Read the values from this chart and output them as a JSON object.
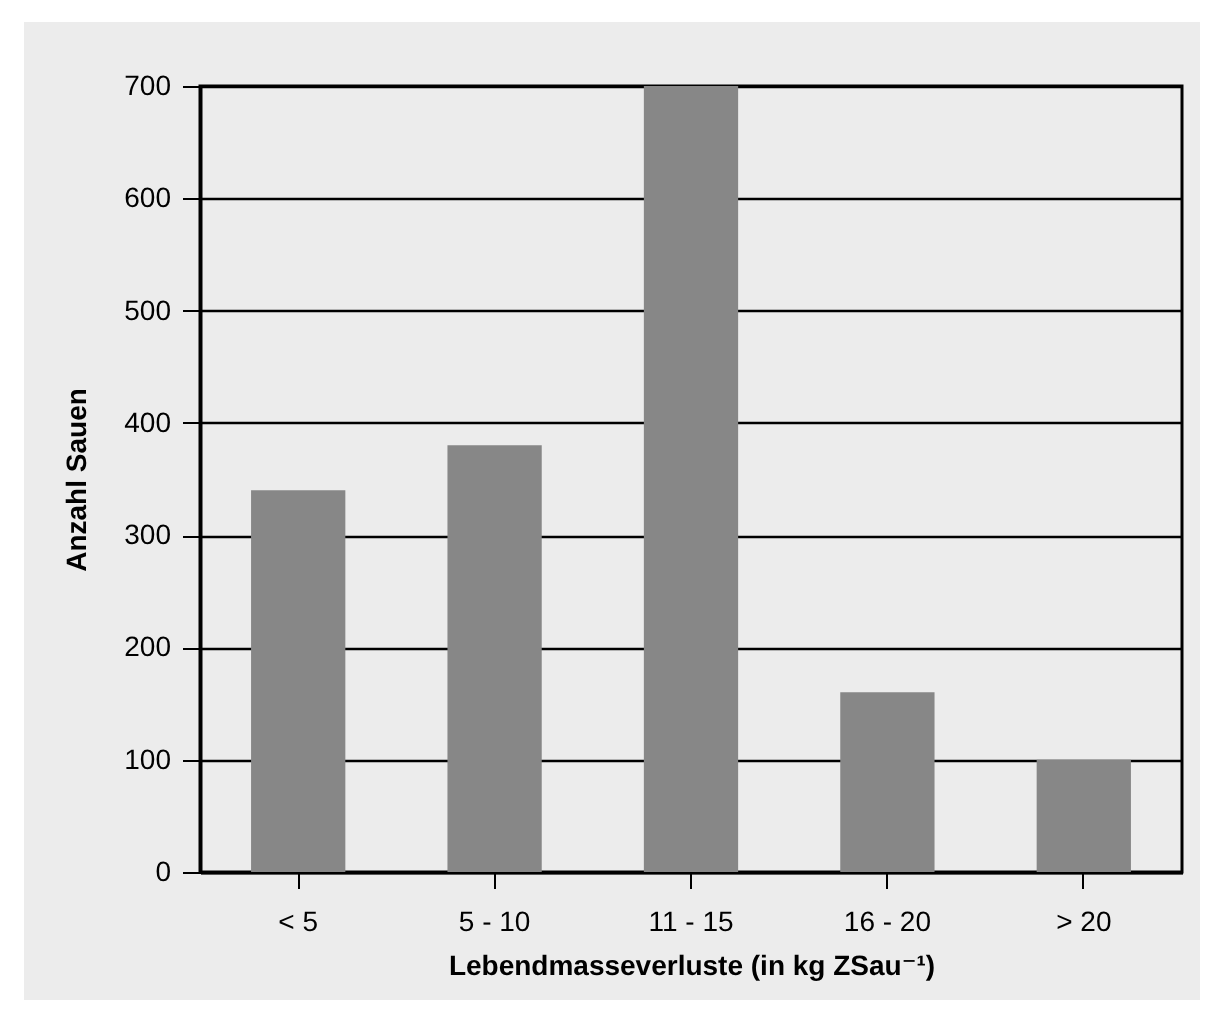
{
  "chart_data": {
    "type": "bar",
    "xlabel": "Lebendmasseverluste (in kg ZSau⁻¹)",
    "ylabel": "Anzahl Sauen",
    "categories": [
      "< 5",
      "5 - 10",
      "11 - 15",
      "16 - 20",
      "> 20"
    ],
    "values": [
      340,
      380,
      700,
      160,
      100
    ],
    "color": "#878787",
    "ylim": [
      0,
      700
    ],
    "yticks": [
      0,
      100,
      200,
      300,
      400,
      500,
      600,
      700
    ],
    "grid": "y"
  }
}
